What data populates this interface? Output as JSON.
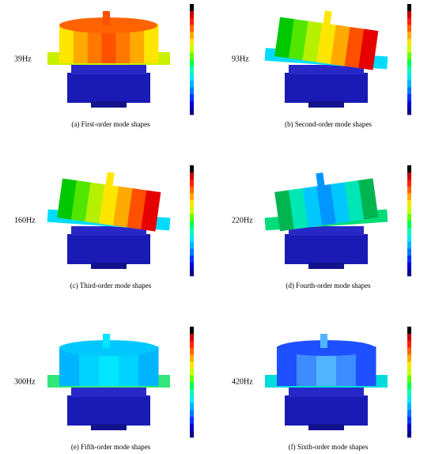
{
  "panels": [
    {
      "frequency": "39Hz",
      "caption": "(a) First-order mode shapes"
    },
    {
      "frequency": "93Hz",
      "caption": "(b) Second-order mode shapes"
    },
    {
      "frequency": "160Hz",
      "caption": "(c) Third-order mode shapes"
    },
    {
      "frequency": "220Hz",
      "caption": "(d) Fourth-order mode shapes"
    },
    {
      "frequency": "300Hz",
      "caption": "(e) Fifth-order mode shapes"
    },
    {
      "frequency": "420Hz",
      "caption": "(f) Sixth-order mode shapes"
    }
  ]
}
